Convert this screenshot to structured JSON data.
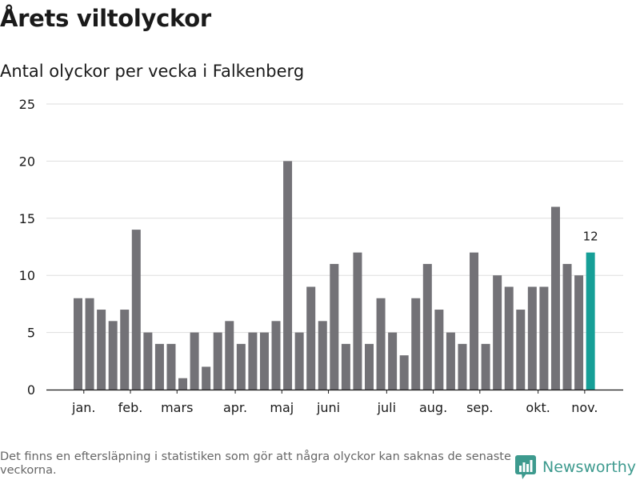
{
  "title": "Årets viltolyckor",
  "subtitle": "Antal olyckor per vecka i Falkenberg",
  "footnote": "Det finns en eftersläpning i statistiken som gör att några olyckor kan saknas de senaste veckorna.",
  "brand": {
    "name": "Newsworthy",
    "icon": "newsworthy-logo-icon"
  },
  "colors": {
    "bar": "#737277",
    "highlight": "#169f97",
    "grid": "#dedede",
    "axis": "#1a1a1a",
    "text": "#1a1a1a",
    "brand": "#3d9a8e"
  },
  "chart_data": {
    "type": "bar",
    "title": "Antal olyckor per vecka i Falkenberg",
    "xlabel": "",
    "ylabel": "",
    "ylim": [
      0,
      25
    ],
    "yticks": [
      0,
      5,
      10,
      15,
      20,
      25
    ],
    "grid": true,
    "values": [
      8,
      8,
      7,
      6,
      7,
      14,
      5,
      4,
      4,
      1,
      5,
      2,
      5,
      6,
      4,
      5,
      5,
      6,
      20,
      5,
      9,
      6,
      11,
      4,
      12,
      4,
      8,
      5,
      3,
      8,
      11,
      7,
      5,
      4,
      12,
      4,
      10,
      9,
      7,
      9,
      9,
      16,
      11,
      10,
      12
    ],
    "highlight_index": 44,
    "highlight_label": "12",
    "month_labels": [
      {
        "label": "jan.",
        "at": 0.5
      },
      {
        "label": "feb.",
        "at": 4.5
      },
      {
        "label": "mars",
        "at": 8.5
      },
      {
        "label": "apr.",
        "at": 13.5
      },
      {
        "label": "maj",
        "at": 17.5
      },
      {
        "label": "juni",
        "at": 21.5
      },
      {
        "label": "juli",
        "at": 26.5
      },
      {
        "label": "aug.",
        "at": 30.5
      },
      {
        "label": "sep.",
        "at": 34.5
      },
      {
        "label": "okt.",
        "at": 39.5
      },
      {
        "label": "nov.",
        "at": 43.5
      }
    ]
  }
}
